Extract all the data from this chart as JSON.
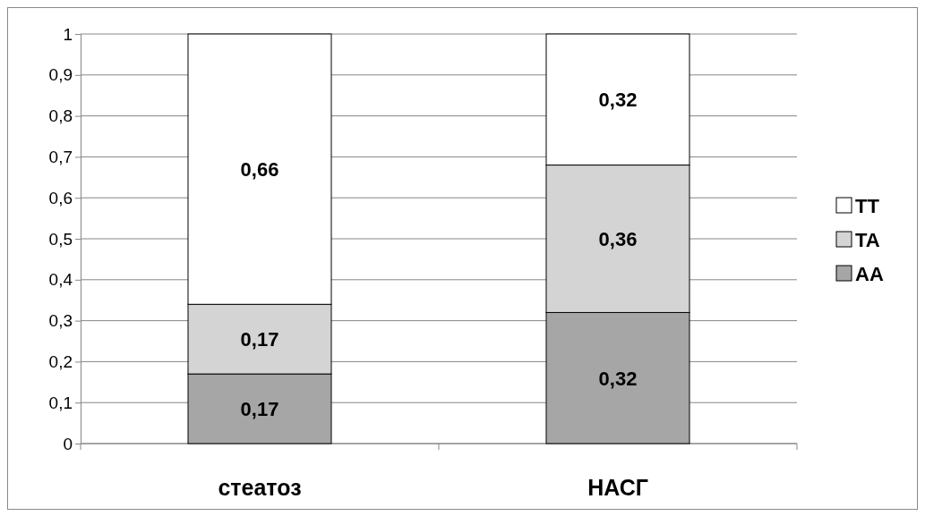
{
  "chart_data": {
    "type": "bar",
    "stacked": true,
    "categories": [
      "стеатоз",
      "НАСГ"
    ],
    "series": [
      {
        "name": "AA",
        "color": "#a6a6a6",
        "values": [
          0.17,
          0.32
        ],
        "value_labels": [
          "0,17",
          "0,32"
        ]
      },
      {
        "name": "TA",
        "color": "#d4d4d4",
        "values": [
          0.17,
          0.36
        ],
        "value_labels": [
          "0,17",
          "0,36"
        ]
      },
      {
        "name": "TT",
        "color": "#ffffff",
        "values": [
          0.66,
          0.32
        ],
        "value_labels": [
          "0,66",
          "0,32"
        ]
      }
    ],
    "ylim": [
      0,
      1
    ],
    "yticks": [
      0,
      {
        "value": 0.1,
        "label": "0,1"
      },
      {
        "value": 0.2,
        "label": "0,2"
      },
      {
        "value": 0.3,
        "label": "0,3"
      },
      {
        "value": 0.4,
        "label": "0,4"
      },
      {
        "value": 0.5,
        "label": "0,5"
      },
      {
        "value": 0.6,
        "label": "0,6"
      },
      {
        "value": 0.7,
        "label": "0,7"
      },
      {
        "value": 0.8,
        "label": "0,8"
      },
      {
        "value": 0.9,
        "label": "0,9"
      },
      1
    ],
    "grid": "y",
    "legend": "right"
  }
}
